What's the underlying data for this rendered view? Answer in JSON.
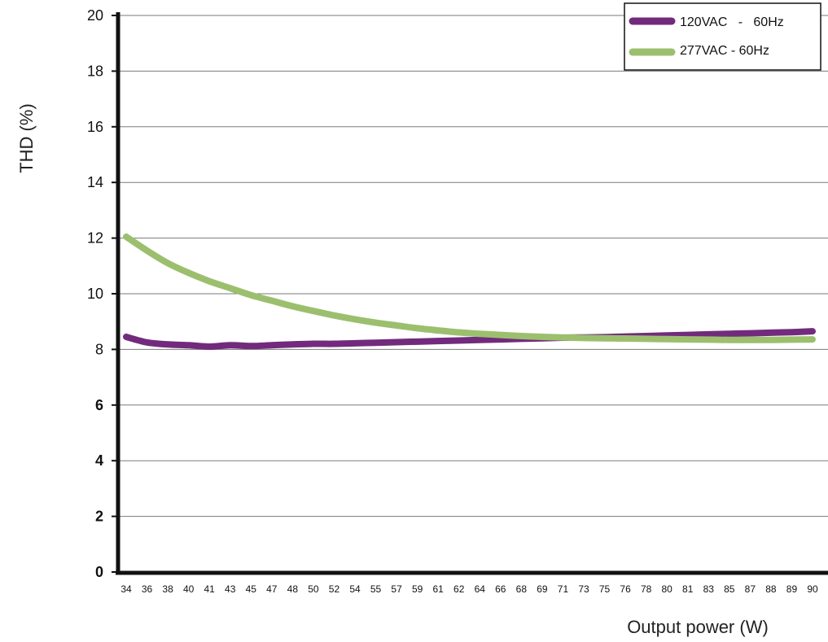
{
  "chart_data": {
    "type": "line",
    "title": "",
    "xlabel": "Output power (W)",
    "ylabel": "THD (%)",
    "ylim": [
      0,
      20
    ],
    "yticks": [
      0,
      2,
      4,
      6,
      8,
      10,
      12,
      14,
      16,
      18,
      20
    ],
    "yticks_bold": [
      0,
      2,
      4,
      6
    ],
    "grid": true,
    "legend_position": "top-right",
    "categories": [
      "34",
      "36",
      "38",
      "40",
      "41",
      "43",
      "45",
      "47",
      "48",
      "50",
      "52",
      "54",
      "55",
      "57",
      "59",
      "61",
      "62",
      "64",
      "66",
      "68",
      "69",
      "71",
      "73",
      "75",
      "76",
      "78",
      "80",
      "81",
      "83",
      "85",
      "87",
      "88",
      "89",
      "90"
    ],
    "series": [
      {
        "name": "120VAC   -   60Hz",
        "color": "#722b7c",
        "values": [
          8.45,
          8.25,
          8.18,
          8.15,
          8.1,
          8.15,
          8.12,
          8.15,
          8.18,
          8.2,
          8.2,
          8.22,
          8.24,
          8.26,
          8.28,
          8.3,
          8.32,
          8.34,
          8.36,
          8.38,
          8.4,
          8.42,
          8.43,
          8.44,
          8.46,
          8.48,
          8.5,
          8.52,
          8.54,
          8.56,
          8.58,
          8.6,
          8.62,
          8.65
        ]
      },
      {
        "name": "277VAC - 60Hz",
        "color": "#9cbf6e",
        "values": [
          12.05,
          11.55,
          11.1,
          10.75,
          10.45,
          10.2,
          9.95,
          9.75,
          9.55,
          9.38,
          9.22,
          9.08,
          8.96,
          8.86,
          8.76,
          8.68,
          8.61,
          8.56,
          8.52,
          8.48,
          8.45,
          8.43,
          8.41,
          8.4,
          8.39,
          8.38,
          8.37,
          8.36,
          8.35,
          8.34,
          8.34,
          8.34,
          8.35,
          8.36
        ]
      }
    ]
  }
}
